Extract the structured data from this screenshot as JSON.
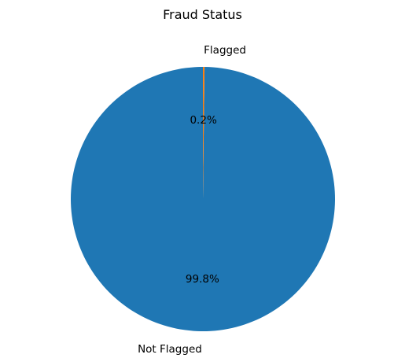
{
  "chart_data": {
    "type": "pie",
    "title": "Fraud Status",
    "categories": [
      "Not Flagged",
      "Flagged"
    ],
    "values": [
      99.8,
      0.2
    ],
    "percent_labels": [
      "99.8%",
      "0.2%"
    ],
    "colors": [
      "#1f77b4",
      "#ff7f0e"
    ],
    "start_angle_deg": 90,
    "direction": "counterclockwise",
    "legend": "none"
  }
}
